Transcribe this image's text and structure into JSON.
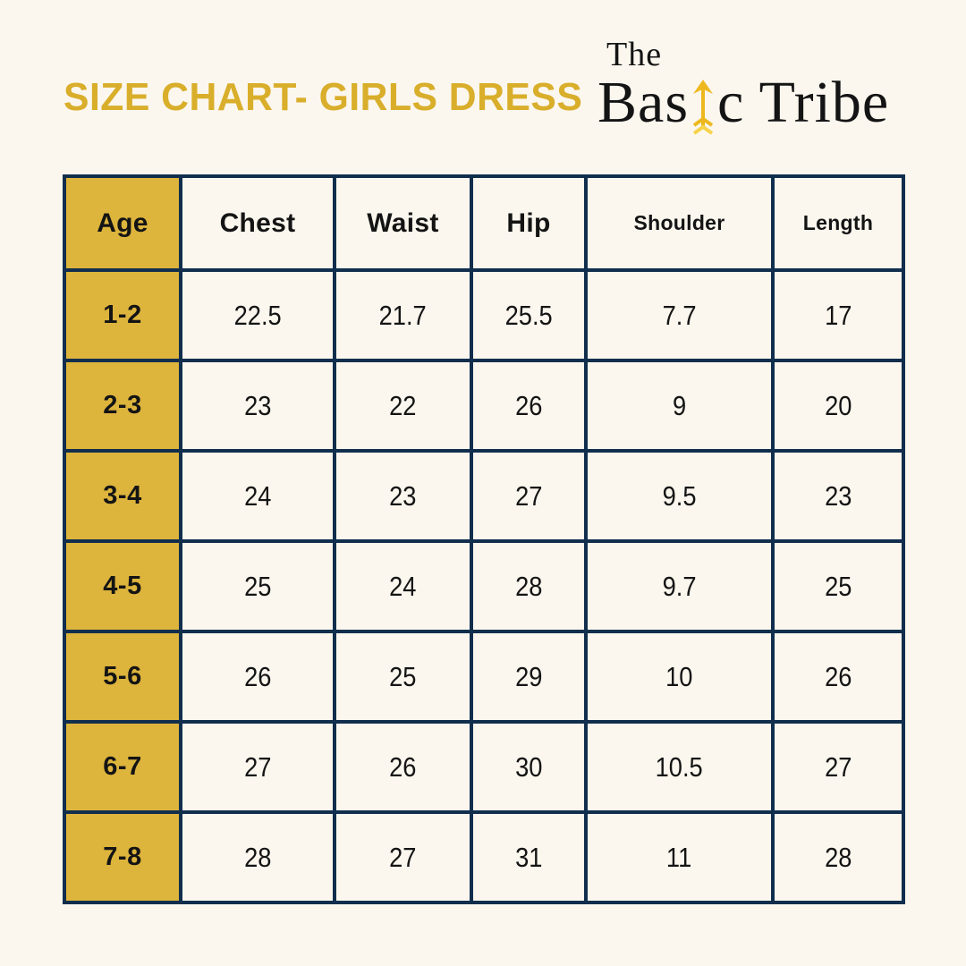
{
  "page": {
    "background": "#FBF7EE",
    "title": "SIZE CHART- GIRLS DRESS",
    "title_color": "#D9AE2B"
  },
  "logo": {
    "line1": "The",
    "word_before_arrow": "Bas",
    "word_after_arrow": "c Tribe",
    "arrow_color": "#EDB81F",
    "text_color": "#141414"
  },
  "chart_data": {
    "type": "table",
    "title": "SIZE CHART- GIRLS DRESS",
    "columns": [
      "Age",
      "Chest",
      "Waist",
      "Hip",
      "Shoulder",
      "Length"
    ],
    "small_header_columns": [
      "Shoulder",
      "Length"
    ],
    "rows": [
      [
        "1-2",
        "22.5",
        "21.7",
        "25.5",
        "7.7",
        "17"
      ],
      [
        "2-3",
        "23",
        "22",
        "26",
        "9",
        "20"
      ],
      [
        "3-4",
        "24",
        "23",
        "27",
        "9.5",
        "23"
      ],
      [
        "4-5",
        "25",
        "24",
        "28",
        "9.7",
        "25"
      ],
      [
        "5-6",
        "26",
        "25",
        "29",
        "10",
        "26"
      ],
      [
        "6-7",
        "27",
        "26",
        "30",
        "10.5",
        "27"
      ],
      [
        "7-8",
        "28",
        "27",
        "31",
        "11",
        "28"
      ]
    ],
    "accent_column": "Age",
    "colors": {
      "age_column_bg": "#DDB43C",
      "grid_border": "#112E4D",
      "cell_bg": "#FBF7EE",
      "text": "#141414"
    }
  }
}
